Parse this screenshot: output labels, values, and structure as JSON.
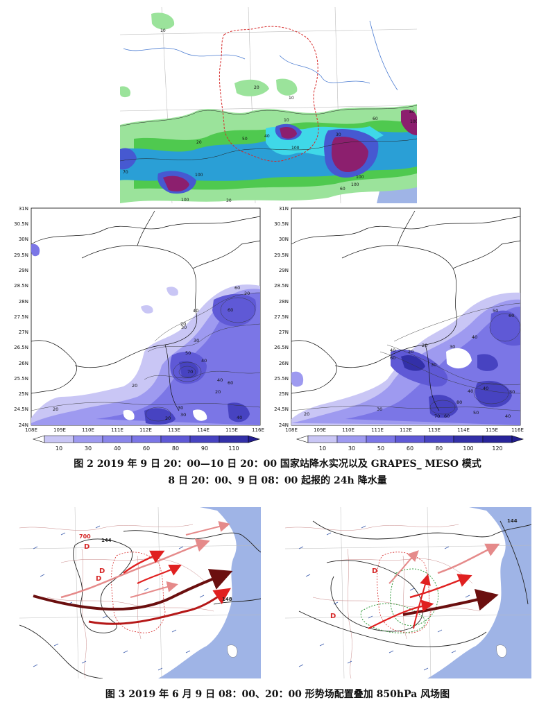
{
  "fig2": {
    "caption_line1": "图 2   2019 年 9 日 20：00—10 日 20：00 国家站降水实况以及 GRAPES_ MESO 模式",
    "caption_line2": "8 日 20：00、9 日 08：00 起报的 24h 降水量",
    "lat_ticks": [
      "31N",
      "30.5N",
      "30N",
      "29.5N",
      "29N",
      "28.5N",
      "28N",
      "27.5N",
      "27N",
      "26.5N",
      "26N",
      "25.5N",
      "25N",
      "24.5N",
      "24N"
    ],
    "lon_ticks": [
      "108E",
      "109E",
      "110E",
      "111E",
      "112E",
      "113E",
      "114E",
      "115E",
      "116E"
    ],
    "left_colorbar": [
      "10",
      "30",
      "40",
      "60",
      "80",
      "90",
      "110"
    ],
    "right_colorbar": [
      "10",
      "30",
      "50",
      "60",
      "80",
      "100",
      "120"
    ],
    "top_contour_labels": [
      "10",
      "10",
      "20",
      "10",
      "50",
      "40",
      "100",
      "100",
      "60",
      "100",
      "70",
      "100",
      "20",
      "30",
      "60",
      "80",
      "100",
      "30",
      "100"
    ],
    "left_contour_labels": [
      "60",
      "20",
      "40",
      "30",
      "60",
      "20",
      "30",
      "50",
      "40",
      "20",
      "70",
      "40",
      "60",
      "30",
      "20",
      "20",
      "30",
      "40",
      "20"
    ],
    "right_contour_labels": [
      "50",
      "60",
      "40",
      "30",
      "20",
      "40",
      "60",
      "30",
      "80",
      "40",
      "70",
      "60",
      "50",
      "30",
      "20",
      "30",
      "40",
      "20",
      "40"
    ],
    "colors": {
      "c10": "#9be39b",
      "c30": "#4fc94f",
      "c40": "#2a9fd6",
      "c60": "#3fd8e8",
      "c80": "#4659d1",
      "c100": "#8c1f6e",
      "b10": "#c9c6f5",
      "b30": "#9e9af0",
      "b50": "#7b76e6",
      "b60": "#5f59d6",
      "b80": "#4743c1",
      "b100": "#3330a8",
      "b120": "#221d8e"
    }
  },
  "fig3": {
    "caption": "图 3   2019 年 6 月 9 日 08：00、20：00 形势场配置叠加 850hPa 风场图",
    "left_labels": [
      "700",
      "D",
      "D",
      "D",
      "144",
      "148"
    ],
    "right_labels": [
      "D",
      "D",
      "144"
    ],
    "colors": {
      "sea": "#9fb4e6",
      "land": "#ffffff",
      "arrow_dark": "#6b0f0f",
      "arrow_red": "#e02020",
      "arrow_pink": "#e58a8a",
      "contour": "#222222",
      "green": "#2f9a3a"
    }
  }
}
